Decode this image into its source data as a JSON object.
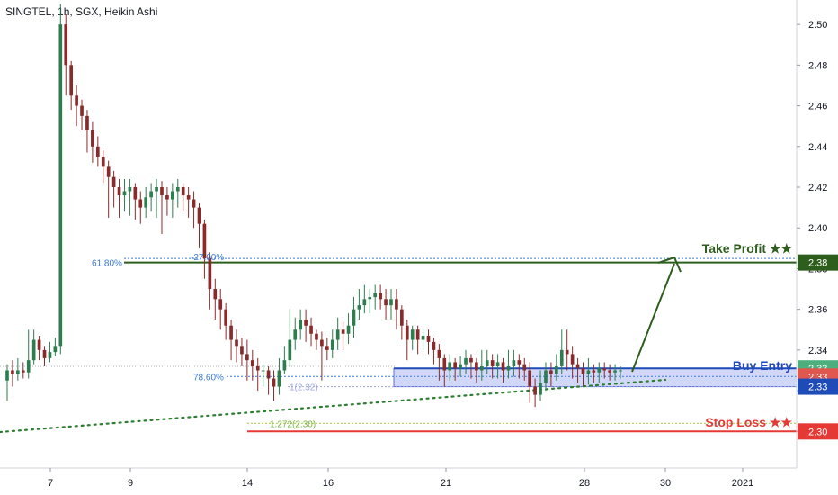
{
  "header": {
    "title": "SINGTEL, 1h, SGX, Heikin Ashi"
  },
  "colors": {
    "up": "#26a69a",
    "up_dark": "#2e7d4f",
    "down": "#ef5350",
    "down_dark": "#8b2a2a",
    "take_profit": "#2e5e1e",
    "buy_entry": "#1e4bb8",
    "stop_loss": "#e53935",
    "fib": "#3a7bd5",
    "fib_ext": "#9acd32",
    "zone_fill": "#5b6ee1",
    "trend": "#2e7d32"
  },
  "chart_data": {
    "type": "candlestick",
    "ylim": [
      2.282,
      2.512
    ],
    "x_ticks": [
      "7",
      "9",
      "14",
      "16",
      "21",
      "28",
      "30",
      "2021"
    ],
    "y_ticks": [
      "2.30",
      "2.32",
      "2.34",
      "2.36",
      "2.38",
      "2.40",
      "2.42",
      "2.44",
      "2.46",
      "2.48",
      "2.50"
    ],
    "price_badges": [
      {
        "label": "2.38",
        "value": 2.383,
        "color": "#2e5e1e"
      },
      {
        "label": "2.33",
        "value": 2.331,
        "color": "#4caf7d"
      },
      {
        "label": "2.33",
        "value": 2.327,
        "color": "#e0574f"
      },
      {
        "label": "2.33",
        "value": 2.322,
        "color": "#1e4bb8"
      },
      {
        "label": "2.30",
        "value": 2.3,
        "color": "#e53935"
      }
    ],
    "annotations": {
      "take_profit": "Take Profit ★★",
      "buy_entry": "Buy Entry",
      "stop_loss": "Stop Loss ★★",
      "fib_618": "61.80%",
      "fib_27": "-27.00%",
      "fib_786": "78.60%",
      "fib_1": "1(2.32)",
      "fib_1272": "1.272(2.30)"
    },
    "levels": {
      "take_profit": 2.383,
      "take_profit_dotted": 2.385,
      "buy_entry": 2.331,
      "zone_low": 2.322,
      "fib_786": 2.327,
      "fib_1": 2.322,
      "fib_1272": 2.304,
      "stop_loss": 2.3,
      "ref_dotted": 2.332
    },
    "candles": [
      [
        2.325,
        2.33,
        2.333,
        2.315
      ],
      [
        2.33,
        2.328,
        2.335,
        2.322
      ],
      [
        2.328,
        2.33,
        2.336,
        2.325
      ],
      [
        2.33,
        2.329,
        2.334,
        2.326
      ],
      [
        2.329,
        2.335,
        2.35,
        2.326
      ],
      [
        2.335,
        2.345,
        2.35,
        2.333
      ],
      [
        2.345,
        2.34,
        2.347,
        2.335
      ],
      [
        2.34,
        2.336,
        2.342,
        2.332
      ],
      [
        2.336,
        2.339,
        2.344,
        2.334
      ],
      [
        2.339,
        2.342,
        2.346,
        2.337
      ],
      [
        2.342,
        2.5,
        2.51,
        2.338
      ],
      [
        2.5,
        2.48,
        2.505,
        2.465
      ],
      [
        2.48,
        2.465,
        2.482,
        2.458
      ],
      [
        2.465,
        2.46,
        2.47,
        2.45
      ],
      [
        2.46,
        2.455,
        2.463,
        2.448
      ],
      [
        2.455,
        2.448,
        2.458,
        2.437
      ],
      [
        2.448,
        2.44,
        2.452,
        2.432
      ],
      [
        2.44,
        2.435,
        2.445,
        2.43
      ],
      [
        2.435,
        2.43,
        2.438,
        2.422
      ],
      [
        2.43,
        2.425,
        2.433,
        2.405
      ],
      [
        2.425,
        2.42,
        2.428,
        2.41
      ],
      [
        2.42,
        2.416,
        2.424,
        2.405
      ],
      [
        2.416,
        2.418,
        2.424,
        2.408
      ],
      [
        2.418,
        2.42,
        2.424,
        2.406
      ],
      [
        2.42,
        2.414,
        2.422,
        2.404
      ],
      [
        2.414,
        2.41,
        2.418,
        2.402
      ],
      [
        2.41,
        2.415,
        2.42,
        2.405
      ],
      [
        2.415,
        2.418,
        2.422,
        2.408
      ],
      [
        2.418,
        2.42,
        2.424,
        2.405
      ],
      [
        2.42,
        2.416,
        2.423,
        2.397
      ],
      [
        2.416,
        2.414,
        2.42,
        2.406
      ],
      [
        2.414,
        2.418,
        2.422,
        2.405
      ],
      [
        2.418,
        2.42,
        2.424,
        2.41
      ],
      [
        2.42,
        2.416,
        2.422,
        2.408
      ],
      [
        2.416,
        2.414,
        2.42,
        2.405
      ],
      [
        2.414,
        2.41,
        2.418,
        2.4
      ],
      [
        2.41,
        2.402,
        2.412,
        2.39
      ],
      [
        2.402,
        2.385,
        2.404,
        2.375
      ],
      [
        2.385,
        2.37,
        2.388,
        2.36
      ],
      [
        2.37,
        2.365,
        2.375,
        2.355
      ],
      [
        2.365,
        2.36,
        2.37,
        2.35
      ],
      [
        2.36,
        2.352,
        2.363,
        2.345
      ],
      [
        2.352,
        2.345,
        2.355,
        2.335
      ],
      [
        2.345,
        2.342,
        2.35,
        2.334
      ],
      [
        2.342,
        2.338,
        2.346,
        2.332
      ],
      [
        2.338,
        2.335,
        2.345,
        2.325
      ],
      [
        2.335,
        2.332,
        2.34,
        2.325
      ],
      [
        2.332,
        2.33,
        2.336,
        2.32
      ],
      [
        2.33,
        2.33,
        2.333,
        2.322
      ],
      [
        2.33,
        2.326,
        2.332,
        2.318
      ],
      [
        2.326,
        2.322,
        2.33,
        2.315
      ],
      [
        2.322,
        2.33,
        2.336,
        2.318
      ],
      [
        2.33,
        2.335,
        2.342,
        2.328
      ],
      [
        2.335,
        2.345,
        2.36,
        2.332
      ],
      [
        2.345,
        2.35,
        2.356,
        2.34
      ],
      [
        2.35,
        2.355,
        2.36,
        2.345
      ],
      [
        2.355,
        2.352,
        2.36,
        2.344
      ],
      [
        2.352,
        2.348,
        2.356,
        2.342
      ],
      [
        2.348,
        2.345,
        2.35,
        2.34
      ],
      [
        2.345,
        2.342,
        2.349,
        2.325
      ],
      [
        2.342,
        2.34,
        2.346,
        2.335
      ],
      [
        2.34,
        2.345,
        2.35,
        2.336
      ],
      [
        2.345,
        2.35,
        2.356,
        2.34
      ],
      [
        2.35,
        2.348,
        2.354,
        2.34
      ],
      [
        2.348,
        2.352,
        2.358,
        2.343
      ],
      [
        2.352,
        2.36,
        2.366,
        2.346
      ],
      [
        2.36,
        2.362,
        2.37,
        2.355
      ],
      [
        2.362,
        2.365,
        2.372,
        2.358
      ],
      [
        2.365,
        2.366,
        2.37,
        2.358
      ],
      [
        2.366,
        2.368,
        2.372,
        2.36
      ],
      [
        2.368,
        2.365,
        2.372,
        2.36
      ],
      [
        2.365,
        2.362,
        2.37,
        2.355
      ],
      [
        2.362,
        2.365,
        2.37,
        2.355
      ],
      [
        2.365,
        2.36,
        2.37,
        2.35
      ],
      [
        2.36,
        2.352,
        2.362,
        2.345
      ],
      [
        2.352,
        2.345,
        2.355,
        2.335
      ],
      [
        2.345,
        2.35,
        2.352,
        2.34
      ],
      [
        2.35,
        2.345,
        2.352,
        2.338
      ],
      [
        2.345,
        2.347,
        2.35,
        2.34
      ],
      [
        2.347,
        2.344,
        2.35,
        2.338
      ],
      [
        2.344,
        2.34,
        2.346,
        2.333
      ],
      [
        2.34,
        2.336,
        2.343,
        2.325
      ],
      [
        2.336,
        2.33,
        2.338,
        2.322
      ],
      [
        2.33,
        2.334,
        2.338,
        2.325
      ],
      [
        2.334,
        2.331,
        2.336,
        2.325
      ],
      [
        2.331,
        2.333,
        2.337,
        2.327
      ],
      [
        2.333,
        2.336,
        2.34,
        2.328
      ],
      [
        2.336,
        2.334,
        2.338,
        2.326
      ],
      [
        2.334,
        2.33,
        2.336,
        2.324
      ],
      [
        2.33,
        2.332,
        2.34,
        2.325
      ],
      [
        2.332,
        2.335,
        2.34,
        2.328
      ],
      [
        2.335,
        2.332,
        2.338,
        2.326
      ],
      [
        2.332,
        2.334,
        2.338,
        2.326
      ],
      [
        2.334,
        2.33,
        2.336,
        2.324
      ],
      [
        2.33,
        2.332,
        2.34,
        2.326
      ],
      [
        2.332,
        2.335,
        2.34,
        2.327
      ],
      [
        2.335,
        2.333,
        2.338,
        2.326
      ],
      [
        2.333,
        2.33,
        2.336,
        2.325
      ],
      [
        2.33,
        2.322,
        2.334,
        2.314
      ],
      [
        2.322,
        2.318,
        2.326,
        2.312
      ],
      [
        2.318,
        2.324,
        2.33,
        2.315
      ],
      [
        2.324,
        2.33,
        2.334,
        2.32
      ],
      [
        2.33,
        2.328,
        2.334,
        2.322
      ],
      [
        2.328,
        2.332,
        2.338,
        2.325
      ],
      [
        2.332,
        2.34,
        2.35,
        2.328
      ],
      [
        2.34,
        2.338,
        2.35,
        2.33
      ],
      [
        2.338,
        2.333,
        2.342,
        2.326
      ],
      [
        2.333,
        2.331,
        2.336,
        2.324
      ],
      [
        2.331,
        2.328,
        2.334,
        2.322
      ],
      [
        2.328,
        2.33,
        2.336,
        2.323
      ],
      [
        2.33,
        2.329,
        2.333,
        2.324
      ],
      [
        2.329,
        2.331,
        2.334,
        2.324
      ],
      [
        2.331,
        2.33,
        2.334,
        2.326
      ],
      [
        2.33,
        2.329,
        2.333,
        2.325
      ],
      [
        2.329,
        2.33,
        2.333,
        2.325
      ],
      [
        2.33,
        2.33,
        2.332,
        2.326
      ]
    ]
  }
}
